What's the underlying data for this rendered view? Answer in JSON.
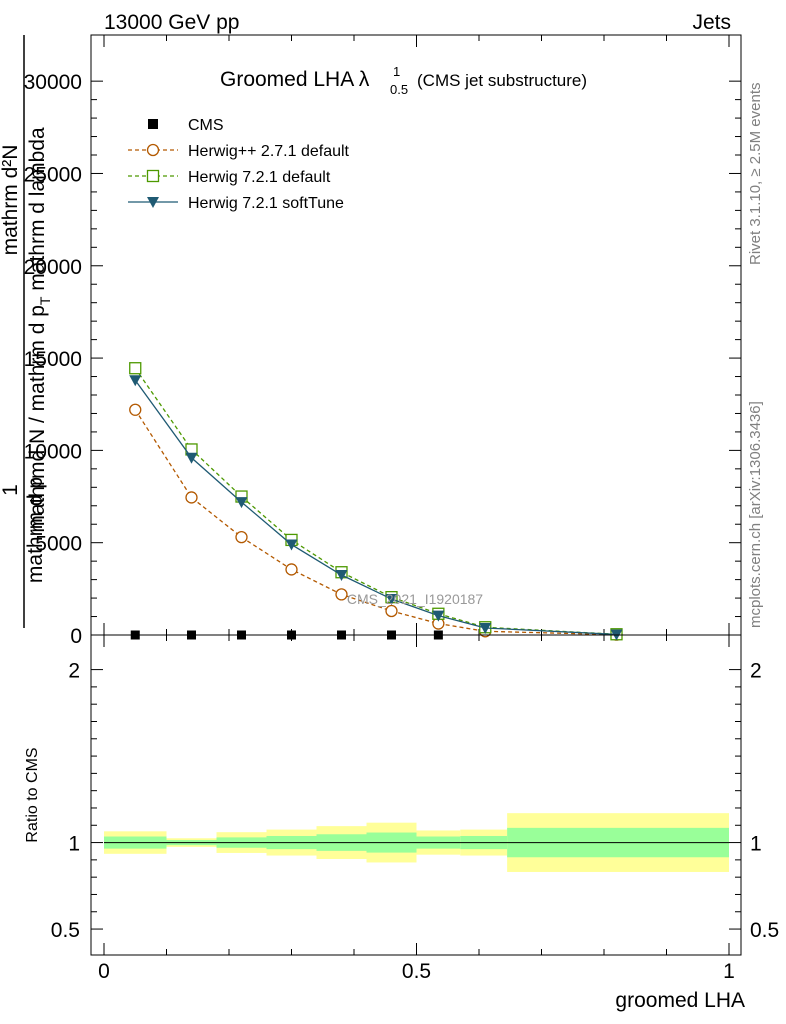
{
  "header": {
    "left": "13000 GeV pp",
    "right": "Jets"
  },
  "side_labels": {
    "rivet": "Rivet 3.1.10, ≥ 2.5M events",
    "mcplots": "mcplots.cern.ch [arXiv:1306.3436]"
  },
  "chart_data": [
    {
      "type": "line",
      "title": "Groomed LHA",
      "title_symbol": "λ",
      "title_sub": "0.5",
      "title_sup": "1",
      "title_suffix": "(CMS jet substructure)",
      "ylabel_top": "1",
      "ylabel_num": "mathrm d²N",
      "ylabel_den": "mathrmd N / mathrm d p",
      "ylabel_den_sub": "T",
      "ylabel_den_tail": " mathrm d lambda",
      "ylabel_upper_lines": [
        "mathrm d p",
        " mathrm d lambda"
      ],
      "analysis_label": "CMS_2021_I1920187",
      "xlim": [
        0,
        1
      ],
      "ylim": [
        0,
        32500
      ],
      "yticks": [
        0,
        5000,
        10000,
        15000,
        20000,
        25000,
        30000
      ],
      "ytick_labels": [
        "0",
        "5000",
        "10000",
        "15000",
        "20000",
        "25000",
        "30000"
      ],
      "legend_position": "top-left",
      "series": [
        {
          "name": "CMS",
          "color": "#000000",
          "marker": "square-filled",
          "x": [
            0.05,
            0.14,
            0.22,
            0.3,
            0.38,
            0.46,
            0.535
          ],
          "y": [
            0,
            0,
            0,
            0,
            0,
            0,
            0
          ]
        },
        {
          "name": "Herwig++ 2.7.1 default",
          "color": "#b35900",
          "marker": "circle-open",
          "dash": "dashed",
          "x": [
            0.05,
            0.14,
            0.22,
            0.3,
            0.38,
            0.46,
            0.535,
            0.61,
            0.82
          ],
          "y": [
            12200,
            7450,
            5300,
            3550,
            2200,
            1300,
            620,
            200,
            20
          ]
        },
        {
          "name": "Herwig 7.2.1 default",
          "color": "#4d9900",
          "marker": "square-open",
          "dash": "dashed",
          "x": [
            0.05,
            0.14,
            0.22,
            0.3,
            0.38,
            0.46,
            0.535,
            0.61,
            0.82
          ],
          "y": [
            14450,
            10050,
            7500,
            5150,
            3400,
            2050,
            1150,
            420,
            40
          ]
        },
        {
          "name": "Herwig 7.2.1 softTune",
          "color": "#1f5a73",
          "marker": "triangle-down-filled",
          "dash": "solid",
          "x": [
            0.05,
            0.14,
            0.22,
            0.3,
            0.38,
            0.46,
            0.535,
            0.61,
            0.82
          ],
          "y": [
            13800,
            9600,
            7200,
            4900,
            3250,
            1950,
            1050,
            380,
            30
          ]
        }
      ]
    },
    {
      "type": "area",
      "ylabel": "Ratio to CMS",
      "xlabel": "groomed LHA",
      "xlim": [
        0,
        1
      ],
      "ylim": [
        0.35,
        2.2
      ],
      "yticks": [
        0.5,
        1,
        2
      ],
      "ytick_labels": [
        "0.5",
        "1",
        "2"
      ],
      "xticks": [
        0,
        0.5,
        1
      ],
      "xtick_labels": [
        "0",
        "0.5",
        "1"
      ],
      "reference_line": 1,
      "band_colors": {
        "outer": "#ffff99",
        "inner": "#99ff99"
      },
      "bins": [
        {
          "x0": 0.0,
          "x1": 0.1,
          "outer": [
            0.935,
            1.065
          ],
          "inner": [
            0.965,
            1.035
          ]
        },
        {
          "x0": 0.1,
          "x1": 0.18,
          "outer": [
            0.975,
            1.025
          ],
          "inner": [
            0.985,
            1.015
          ]
        },
        {
          "x0": 0.18,
          "x1": 0.26,
          "outer": [
            0.94,
            1.06
          ],
          "inner": [
            0.97,
            1.03
          ]
        },
        {
          "x0": 0.26,
          "x1": 0.34,
          "outer": [
            0.925,
            1.075
          ],
          "inner": [
            0.962,
            1.038
          ]
        },
        {
          "x0": 0.34,
          "x1": 0.42,
          "outer": [
            0.905,
            1.095
          ],
          "inner": [
            0.952,
            1.048
          ]
        },
        {
          "x0": 0.42,
          "x1": 0.5,
          "outer": [
            0.885,
            1.115
          ],
          "inner": [
            0.942,
            1.058
          ]
        },
        {
          "x0": 0.5,
          "x1": 0.57,
          "outer": [
            0.93,
            1.07
          ],
          "inner": [
            0.965,
            1.035
          ]
        },
        {
          "x0": 0.57,
          "x1": 0.645,
          "outer": [
            0.925,
            1.075
          ],
          "inner": [
            0.962,
            1.038
          ]
        },
        {
          "x0": 0.645,
          "x1": 1.0,
          "outer": [
            0.83,
            1.17
          ],
          "inner": [
            0.915,
            1.085
          ]
        }
      ]
    }
  ]
}
